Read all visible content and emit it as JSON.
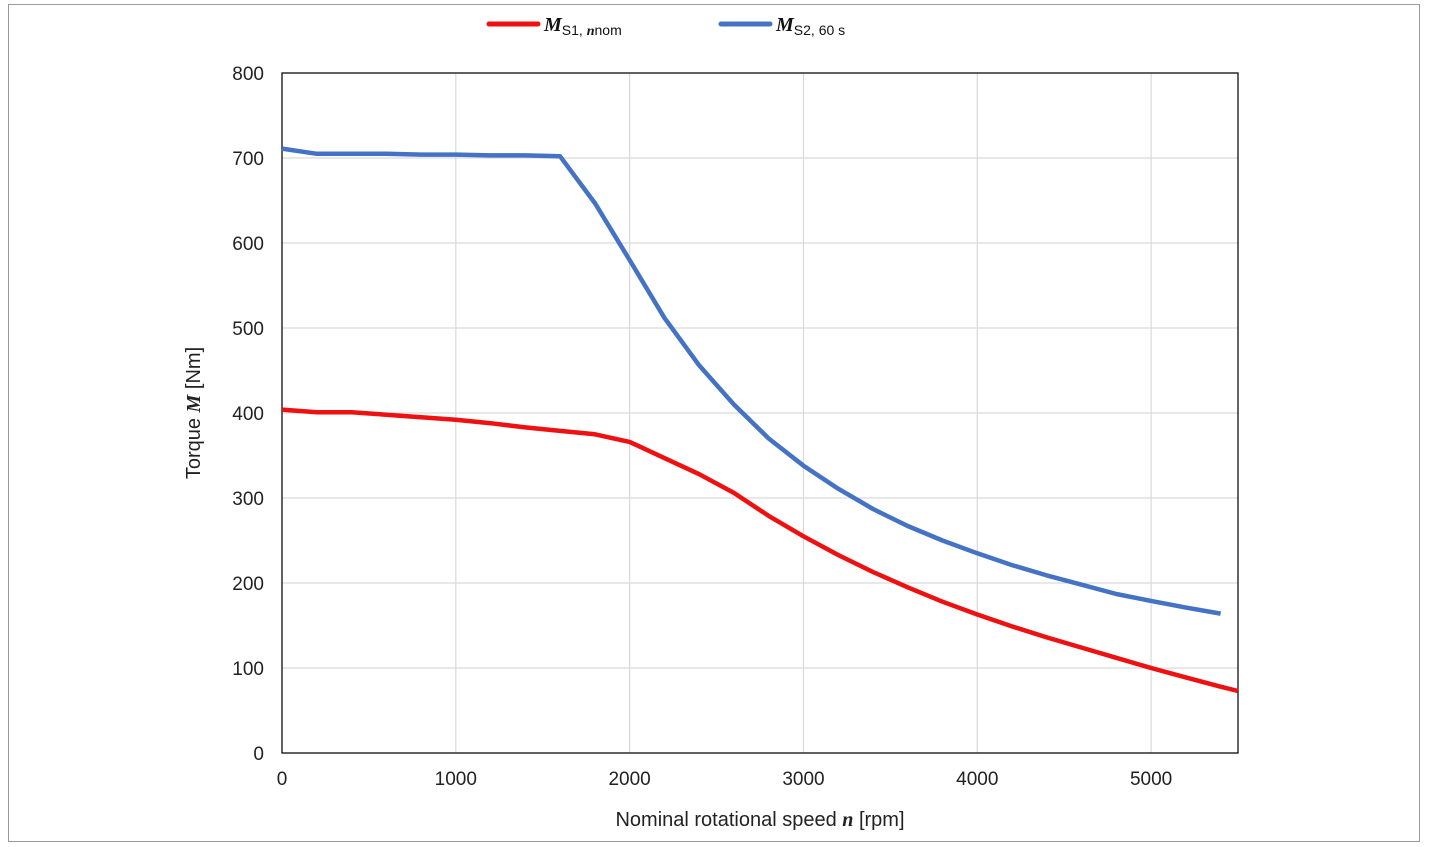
{
  "chart_data": {
    "type": "line",
    "xlabel": {
      "prefix": "Nominal rotational speed ",
      "symbol": "n",
      "suffix": " [rpm]"
    },
    "ylabel": {
      "prefix": "Torque ",
      "symbol": "M",
      "suffix": " [Nm]"
    },
    "xlim": [
      0,
      5500
    ],
    "ylim": [
      0,
      800
    ],
    "xticks": [
      0,
      1000,
      2000,
      3000,
      4000,
      5000
    ],
    "yticks": [
      0,
      100,
      200,
      300,
      400,
      500,
      600,
      700,
      800
    ],
    "grid": true,
    "legend_position": "top-center",
    "series": [
      {
        "id": "s1",
        "name_main": "M",
        "name_sub": "S1, ",
        "name_sub_italic": "n",
        "name_sub_tail": "nom",
        "color": "#ee1111",
        "x": [
          0,
          200,
          400,
          600,
          800,
          1000,
          1200,
          1400,
          1600,
          1800,
          2000,
          2200,
          2400,
          2600,
          2800,
          3000,
          3200,
          3400,
          3600,
          3800,
          4000,
          4200,
          4400,
          4600,
          4800,
          5000,
          5200,
          5400,
          5500
        ],
        "y": [
          404,
          401,
          401,
          398,
          395,
          392,
          388,
          383,
          379,
          375,
          366,
          347,
          328,
          306,
          279,
          255,
          233,
          213,
          195,
          178,
          163,
          149,
          136,
          124,
          112,
          100,
          89,
          78,
          73
        ]
      },
      {
        "id": "s2",
        "name_main": "M",
        "name_sub": "S2, 60 s",
        "name_sub_italic": "",
        "name_sub_tail": "",
        "color": "#4472c4",
        "x": [
          0,
          200,
          400,
          600,
          800,
          1000,
          1200,
          1400,
          1600,
          1800,
          2000,
          2200,
          2400,
          2600,
          2800,
          3000,
          3200,
          3400,
          3600,
          3800,
          4000,
          4200,
          4400,
          4600,
          4800,
          5000,
          5200,
          5400
        ],
        "y": [
          711,
          705,
          705,
          705,
          704,
          704,
          703,
          703,
          702,
          647,
          580,
          512,
          456,
          410,
          370,
          338,
          311,
          287,
          267,
          250,
          235,
          221,
          209,
          198,
          187,
          179,
          171,
          164
        ]
      }
    ]
  }
}
